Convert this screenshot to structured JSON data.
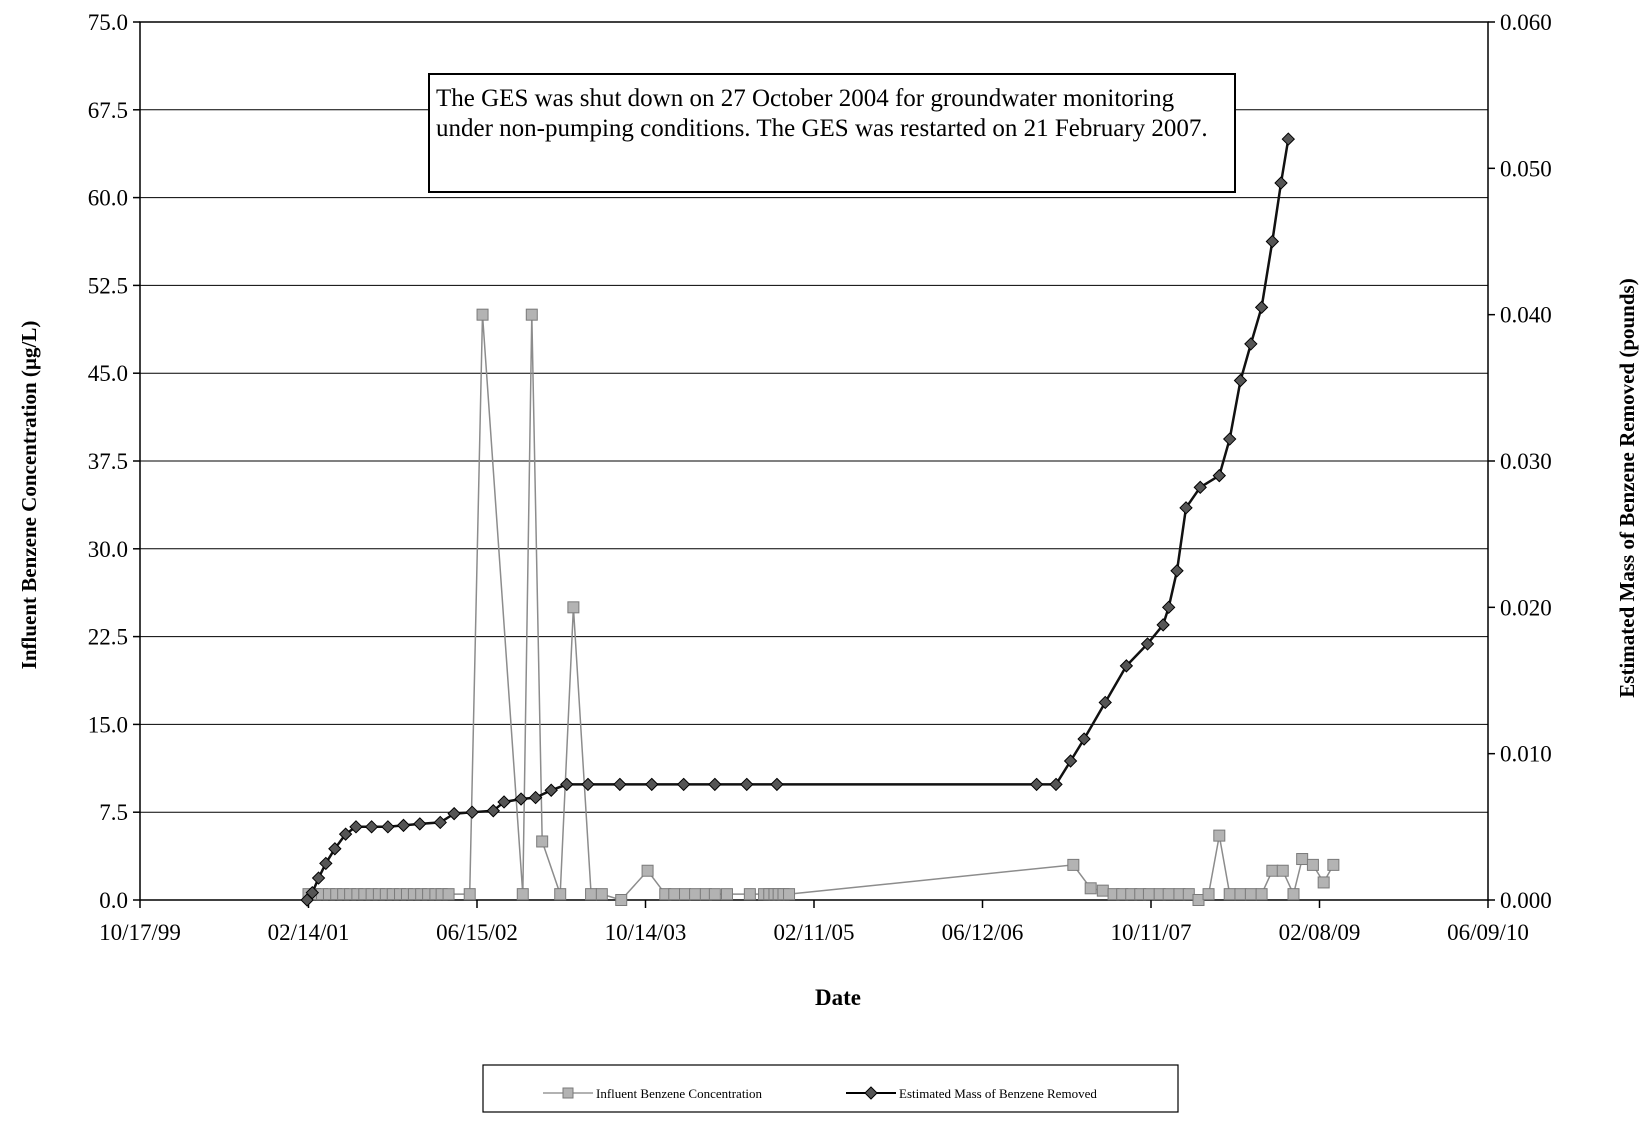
{
  "chart_data": {
    "type": "line",
    "title": "",
    "xlabel": "Date",
    "ylabel_left": "Influent Benzene Concentration (µg/L)",
    "ylabel_right": "Estimated Mass of Benzene Removed (pounds)",
    "x_ticks": [
      "10/17/99",
      "02/14/01",
      "06/15/02",
      "10/14/03",
      "02/11/05",
      "06/12/06",
      "10/11/07",
      "02/08/09",
      "06/09/10"
    ],
    "y_left_ticks": [
      "0.0",
      "7.5",
      "15.0",
      "22.5",
      "30.0",
      "37.5",
      "45.0",
      "52.5",
      "60.0",
      "67.5",
      "75.0"
    ],
    "y_right_ticks": [
      "0.000",
      "0.010",
      "0.020",
      "0.030",
      "0.040",
      "0.050",
      "0.060"
    ],
    "y_left_lim": [
      0,
      75
    ],
    "y_right_lim": [
      0,
      0.06
    ],
    "grid": "horizontal",
    "annotation": "The GES was shut down on 27 October 2004 for groundwater monitoring under non-pumping conditions. The GES was restarted on 21 February 2007.",
    "legend": {
      "placement": "bottom-center"
    },
    "series": [
      {
        "name": "Influent Benzene Concentration",
        "axis": "left",
        "color": "#a8a8a8",
        "marker": "square",
        "points": [
          [
            "2001-02-14",
            0.5
          ],
          [
            "2001-03-05",
            0.5
          ],
          [
            "2001-03-25",
            0.5
          ],
          [
            "2001-04-14",
            0.5
          ],
          [
            "2001-05-05",
            0.5
          ],
          [
            "2001-05-25",
            0.5
          ],
          [
            "2001-06-14",
            0.5
          ],
          [
            "2001-07-05",
            0.5
          ],
          [
            "2001-07-25",
            0.5
          ],
          [
            "2001-08-15",
            0.5
          ],
          [
            "2001-09-05",
            0.5
          ],
          [
            "2001-09-25",
            0.5
          ],
          [
            "2001-10-15",
            0.5
          ],
          [
            "2001-11-05",
            0.5
          ],
          [
            "2001-11-25",
            0.5
          ],
          [
            "2001-12-15",
            0.5
          ],
          [
            "2002-01-05",
            0.5
          ],
          [
            "2002-01-25",
            0.5
          ],
          [
            "2002-02-15",
            0.5
          ],
          [
            "2002-03-05",
            0.5
          ],
          [
            "2002-03-25",
            0.5
          ],
          [
            "2002-05-25",
            0.5
          ],
          [
            "2002-07-01",
            50
          ],
          [
            "2002-10-25",
            0.5
          ],
          [
            "2002-11-20",
            50
          ],
          [
            "2002-12-20",
            5
          ],
          [
            "2003-02-10",
            0.5
          ],
          [
            "2003-03-20",
            25
          ],
          [
            "2003-05-10",
            0.5
          ],
          [
            "2003-06-10",
            0.5
          ],
          [
            "2003-08-05",
            0.0
          ],
          [
            "2003-10-20",
            2.5
          ],
          [
            "2003-12-10",
            0.5
          ],
          [
            "2004-01-05",
            0.5
          ],
          [
            "2004-02-05",
            0.5
          ],
          [
            "2004-03-05",
            0.5
          ],
          [
            "2004-04-05",
            0.5
          ],
          [
            "2004-05-01",
            0.5
          ],
          [
            "2004-06-05",
            0.5
          ],
          [
            "2004-08-10",
            0.5
          ],
          [
            "2004-09-20",
            0.5
          ],
          [
            "2004-10-05",
            0.5
          ],
          [
            "2004-10-20",
            0.5
          ],
          [
            "2004-11-01",
            0.5
          ],
          [
            "2004-11-15",
            0.5
          ],
          [
            "2004-12-01",
            0.5
          ],
          [
            "2007-03-01",
            3.0
          ],
          [
            "2007-04-20",
            1.0
          ],
          [
            "2007-05-25",
            0.8
          ],
          [
            "2007-06-25",
            0.5
          ],
          [
            "2007-07-20",
            0.5
          ],
          [
            "2007-08-15",
            0.5
          ],
          [
            "2007-09-10",
            0.5
          ],
          [
            "2007-10-05",
            0.5
          ],
          [
            "2007-11-05",
            0.5
          ],
          [
            "2007-12-01",
            0.5
          ],
          [
            "2008-01-01",
            0.5
          ],
          [
            "2008-01-28",
            0.5
          ],
          [
            "2008-02-25",
            0.0
          ],
          [
            "2008-03-25",
            0.5
          ],
          [
            "2008-04-25",
            5.5
          ],
          [
            "2008-05-25",
            0.5
          ],
          [
            "2008-06-25",
            0.5
          ],
          [
            "2008-07-25",
            0.5
          ],
          [
            "2008-08-25",
            0.5
          ],
          [
            "2008-09-25",
            2.5
          ],
          [
            "2008-10-25",
            2.5
          ],
          [
            "2008-11-25",
            0.5
          ],
          [
            "2008-12-20",
            3.5
          ],
          [
            "2009-01-20",
            3.0
          ],
          [
            "2009-02-20",
            1.5
          ],
          [
            "2009-03-20",
            3.0
          ]
        ]
      },
      {
        "name": "Estimated Mass of Benzene Removed",
        "axis": "right",
        "color": "#222222",
        "marker": "diamond",
        "points": [
          [
            "2001-02-10",
            0.0
          ],
          [
            "2001-02-25",
            0.0005
          ],
          [
            "2001-03-15",
            0.0015
          ],
          [
            "2001-04-05",
            0.0025
          ],
          [
            "2001-05-01",
            0.0035
          ],
          [
            "2001-06-01",
            0.0045
          ],
          [
            "2001-07-01",
            0.005
          ],
          [
            "2001-08-15",
            0.005
          ],
          [
            "2001-10-01",
            0.005
          ],
          [
            "2001-11-15",
            0.0051
          ],
          [
            "2002-01-01",
            0.0052
          ],
          [
            "2002-03-01",
            0.0053
          ],
          [
            "2002-04-10",
            0.0059
          ],
          [
            "2002-06-01",
            0.006
          ],
          [
            "2002-08-01",
            0.0061
          ],
          [
            "2002-09-01",
            0.0067
          ],
          [
            "2002-10-20",
            0.0069
          ],
          [
            "2002-12-01",
            0.007
          ],
          [
            "2003-01-15",
            0.0075
          ],
          [
            "2003-03-01",
            0.0079
          ],
          [
            "2003-05-01",
            0.0079
          ],
          [
            "2003-08-01",
            0.0079
          ],
          [
            "2003-11-01",
            0.0079
          ],
          [
            "2004-02-01",
            0.0079
          ],
          [
            "2004-05-01",
            0.0079
          ],
          [
            "2004-08-01",
            0.0079
          ],
          [
            "2004-10-27",
            0.0079
          ],
          [
            "2006-11-15",
            0.0079
          ],
          [
            "2007-01-10",
            0.0079
          ],
          [
            "2007-02-21",
            0.0095
          ],
          [
            "2007-04-01",
            0.011
          ],
          [
            "2007-06-01",
            0.0135
          ],
          [
            "2007-08-01",
            0.016
          ],
          [
            "2007-10-01",
            0.0175
          ],
          [
            "2007-11-15",
            0.0188
          ],
          [
            "2007-12-01",
            0.02
          ],
          [
            "2007-12-25",
            0.0225
          ],
          [
            "2008-01-20",
            0.0268
          ],
          [
            "2008-03-01",
            0.0282
          ],
          [
            "2008-04-25",
            0.029
          ],
          [
            "2008-05-25",
            0.0315
          ],
          [
            "2008-06-25",
            0.0355
          ],
          [
            "2008-07-25",
            0.038
          ],
          [
            "2008-08-25",
            0.0405
          ],
          [
            "2008-09-25",
            0.045
          ],
          [
            "2008-10-20",
            0.049
          ],
          [
            "2008-11-10",
            0.052
          ]
        ]
      }
    ]
  }
}
